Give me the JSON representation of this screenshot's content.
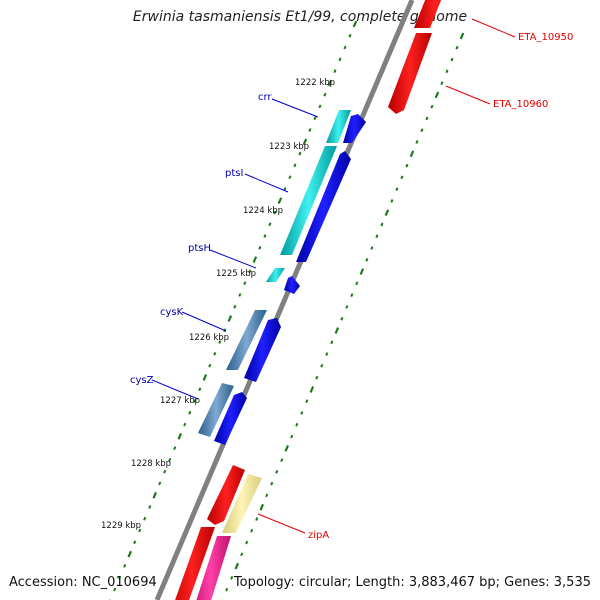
{
  "title": "Erwinia tasmaniensis Et1/99, complete genome",
  "footer": {
    "accession": "Accession: NC_010694",
    "summary": "Topology: circular; Length: 3,883,467 bp; Genes: 3,535"
  },
  "kbp_labels": [
    "1222 kbp",
    "1223 kbp",
    "1224 kbp",
    "1225 kbp",
    "1226 kbp",
    "1227 kbp",
    "1228 kbp",
    "1229 kbp"
  ],
  "genes": [
    {
      "label": "ETA_10950",
      "color": "#e00000"
    },
    {
      "label": "ETA_10960",
      "color": "#e00000"
    },
    {
      "label": "crr",
      "color": "#0000aa"
    },
    {
      "label": "ptsI",
      "color": "#0000aa"
    },
    {
      "label": "ptsH",
      "color": "#0000aa"
    },
    {
      "label": "cysK",
      "color": "#0000aa"
    },
    {
      "label": "cysZ",
      "color": "#0000aa"
    },
    {
      "label": "zipA",
      "color": "#e00000"
    }
  ],
  "colors": {
    "backbone": "#808080",
    "tick": "#1a7a1a",
    "red_gene": "#ff0000",
    "cyan_gene": "#00cccc",
    "steel_gene": "#4a7fb0",
    "blue_cds": "#0000ee",
    "pink_gene": "#ff1493",
    "yellow_gene": "#f0e68c"
  }
}
